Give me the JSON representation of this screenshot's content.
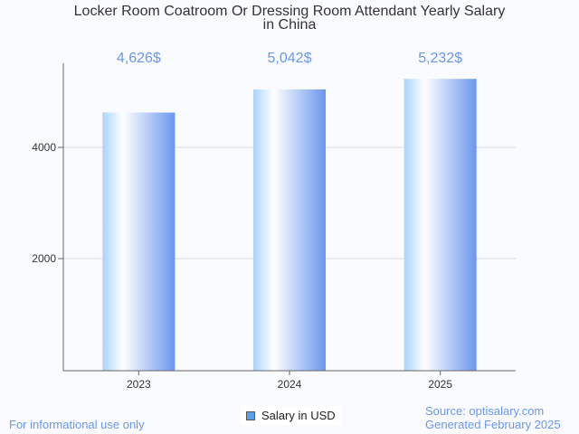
{
  "chart_data": {
    "type": "bar",
    "title_lines": [
      "Locker Room Coatroom Or Dressing Room Attendant Yearly Salary",
      "in China"
    ],
    "categories": [
      "2023",
      "2024",
      "2025"
    ],
    "values": [
      4626,
      5042,
      5232
    ],
    "data_labels": [
      "4,626$",
      "5,042$",
      "5,232$"
    ],
    "yticks": [
      2000,
      4000
    ],
    "ytick_labels": [
      "2000",
      "4000"
    ],
    "ylim": [
      0,
      5512
    ],
    "xlabel": "",
    "ylabel": "",
    "grid": true,
    "legend": {
      "label": "Salary in USD",
      "placement": "bottom-center"
    },
    "colors": {
      "bar_light": "#a9d3ff",
      "bar_dark": "#6b96ee",
      "label": "#6b96ee"
    }
  },
  "footer": {
    "left": "For informational use only",
    "source": "Source: optisalary.com",
    "generated": "Generated February 2025"
  }
}
